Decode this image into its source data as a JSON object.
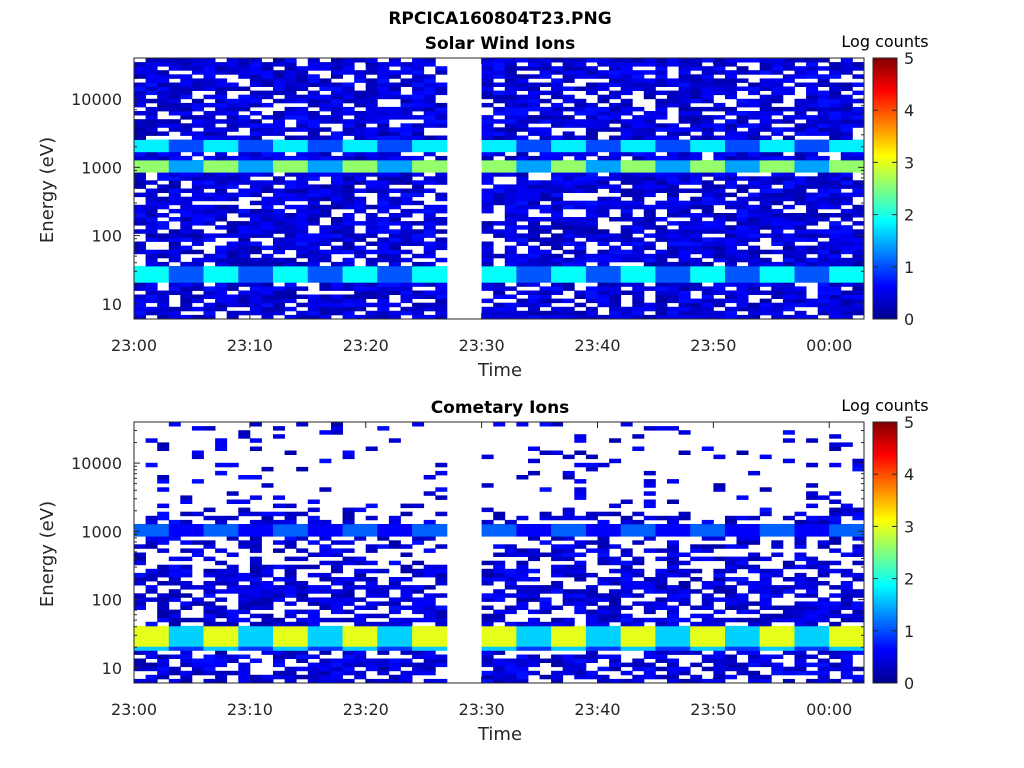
{
  "figure_title": "RPCICA160804T23.PNG",
  "colors": {
    "axis": "#262626",
    "colormap": "jet"
  },
  "chart_data": [
    {
      "type": "heatmap",
      "title": "Solar Wind Ions",
      "xlabel": "Time",
      "ylabel": "Energy (eV)",
      "y_scale": "log",
      "xlim": [
        "23:00",
        "00:03"
      ],
      "ylim": [
        6,
        40000
      ],
      "x_ticks": [
        "23:00",
        "23:10",
        "23:20",
        "23:30",
        "23:40",
        "23:50",
        "00:00"
      ],
      "y_ticks": [
        "10",
        "100",
        "1000",
        "10000"
      ],
      "colorbar": {
        "label": "Log counts",
        "range": [
          0,
          5
        ],
        "ticks": [
          "0",
          "1",
          "2",
          "3",
          "4",
          "5"
        ]
      },
      "data_gap": [
        "23:27",
        "23:30"
      ],
      "bands": [
        {
          "energy_eV": [
            800,
            1300
          ],
          "log_counts": 2.6,
          "note": "dominant"
        },
        {
          "energy_eV": [
            1700,
            2600
          ],
          "log_counts": 1.8
        },
        {
          "energy_eV": [
            22,
            38
          ],
          "log_counts": 1.9
        }
      ]
    },
    {
      "type": "heatmap",
      "title": "Cometary Ions",
      "xlabel": "Time",
      "ylabel": "Energy (eV)",
      "y_scale": "log",
      "xlim": [
        "23:00",
        "00:03"
      ],
      "ylim": [
        6,
        40000
      ],
      "x_ticks": [
        "23:00",
        "23:10",
        "23:20",
        "23:30",
        "23:40",
        "23:50",
        "00:00"
      ],
      "y_ticks": [
        "10",
        "100",
        "1000",
        "10000"
      ],
      "colorbar": {
        "label": "Log counts",
        "range": [
          0,
          5
        ],
        "ticks": [
          "0",
          "1",
          "2",
          "3",
          "4",
          "5"
        ]
      },
      "data_gap": [
        "23:27",
        "23:30"
      ],
      "bands": [
        {
          "energy_eV": [
            22,
            40
          ],
          "log_counts": 3.0,
          "note": "dominant"
        },
        {
          "energy_eV": [
            17,
            22
          ],
          "log_counts": 1.6
        },
        {
          "energy_eV": [
            900,
            1300
          ],
          "log_counts": 1.1
        }
      ]
    }
  ]
}
